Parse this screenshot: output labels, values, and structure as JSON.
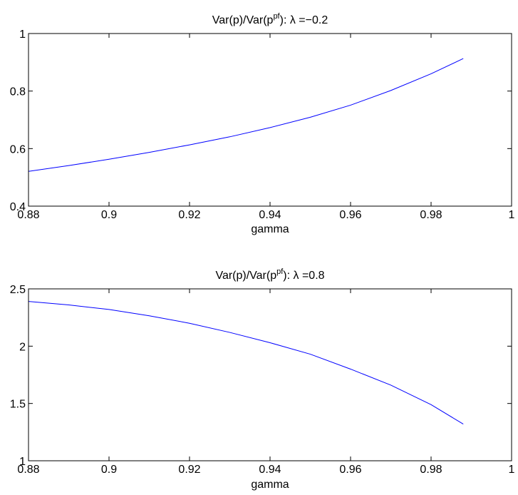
{
  "chart_data": [
    {
      "type": "line",
      "title_parts": [
        "Var(p)/Var(p",
        "pf",
        "): ",
        "λ",
        " =−0.2"
      ],
      "xlabel": "gamma",
      "ylabel": "",
      "xlim": [
        0.88,
        1.0
      ],
      "ylim": [
        0.4,
        1.0
      ],
      "xticks": [
        0.88,
        0.9,
        0.92,
        0.94,
        0.96,
        0.98,
        1.0
      ],
      "xtick_labels": [
        "0.88",
        "0.9",
        "0.92",
        "0.94",
        "0.96",
        "0.98",
        "1"
      ],
      "yticks": [
        0.4,
        0.6,
        0.8,
        1.0
      ],
      "ytick_labels": [
        "0.4",
        "0.6",
        "0.8",
        "1"
      ],
      "grid": false,
      "series": [
        {
          "color": "#0000ff",
          "x": [
            0.88,
            0.89,
            0.9,
            0.91,
            0.92,
            0.93,
            0.94,
            0.95,
            0.96,
            0.97,
            0.98,
            0.988
          ],
          "y": [
            0.521,
            0.541,
            0.563,
            0.587,
            0.613,
            0.641,
            0.673,
            0.709,
            0.751,
            0.802,
            0.86,
            0.913
          ]
        }
      ]
    },
    {
      "type": "line",
      "title_parts": [
        "Var(p)/Var(p",
        "pf",
        "): ",
        "λ",
        " =0.8"
      ],
      "xlabel": "gamma",
      "ylabel": "",
      "xlim": [
        0.88,
        1.0
      ],
      "ylim": [
        1.0,
        2.5
      ],
      "xticks": [
        0.88,
        0.9,
        0.92,
        0.94,
        0.96,
        0.98,
        1.0
      ],
      "xtick_labels": [
        "0.88",
        "0.9",
        "0.92",
        "0.94",
        "0.96",
        "0.98",
        "1"
      ],
      "yticks": [
        1.0,
        1.5,
        2.0,
        2.5
      ],
      "ytick_labels": [
        "1",
        "1.5",
        "2",
        "2.5"
      ],
      "grid": false,
      "series": [
        {
          "color": "#0000ff",
          "x": [
            0.88,
            0.89,
            0.9,
            0.91,
            0.92,
            0.93,
            0.94,
            0.95,
            0.96,
            0.97,
            0.98,
            0.988
          ],
          "y": [
            2.39,
            2.36,
            2.32,
            2.265,
            2.2,
            2.12,
            2.03,
            1.93,
            1.8,
            1.66,
            1.49,
            1.32
          ]
        },
        {
          "color": "#008000",
          "x": [
            0.88,
            1.0
          ],
          "y": [
            1.0,
            1.0
          ]
        }
      ]
    }
  ]
}
